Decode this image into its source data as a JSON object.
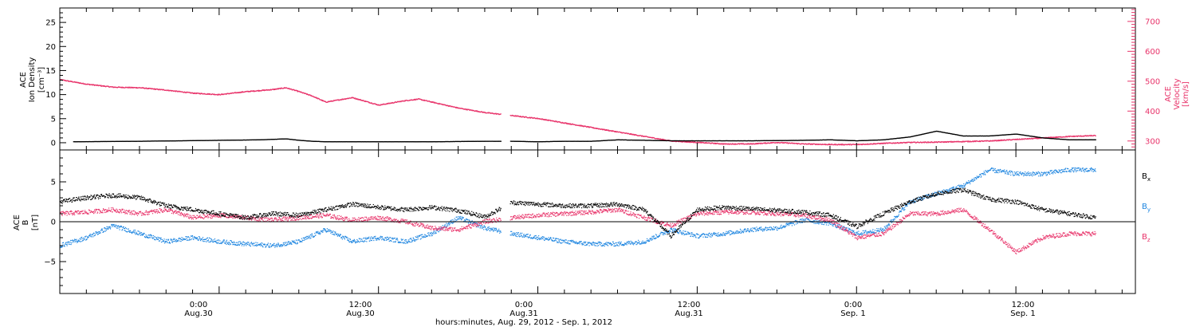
{
  "colors": {
    "black": "#000000",
    "pink": "#e8336a",
    "blue": "#1f86e0"
  },
  "chart_data": [
    {
      "type": "scatter",
      "panel": "plasma",
      "xlim_hours": [
        -12,
        69
      ],
      "left_axis": {
        "label_lines": [
          "ACE",
          "Ion Density",
          "[cm⁻³]"
        ],
        "ylim": [
          -1.5,
          28
        ],
        "ticks": [
          0,
          5,
          10,
          15,
          20,
          25
        ]
      },
      "right_axis": {
        "label_lines": [
          "ACE",
          "Velocity",
          "[km/s]"
        ],
        "ylim": [
          270,
          745
        ],
        "ticks": [
          300,
          400,
          500,
          600,
          700
        ],
        "color": "#e8336a"
      },
      "series": [
        {
          "name": "Ion Density",
          "axis": "left",
          "color": "#000000",
          "x": [
            -11,
            -6,
            -3,
            0,
            3,
            5,
            6,
            7,
            8,
            10,
            12,
            16,
            20,
            22,
            24,
            26,
            28,
            30,
            32,
            34,
            36,
            40,
            44,
            46,
            48,
            50,
            51,
            52,
            54,
            56,
            58,
            60,
            62,
            64,
            66
          ],
          "y": [
            0.2,
            0.3,
            0.4,
            0.5,
            0.6,
            0.8,
            0.5,
            0.3,
            0.2,
            0.2,
            0.2,
            0.2,
            0.3,
            0.3,
            0.2,
            0.3,
            0.3,
            0.6,
            0.5,
            0.4,
            0.4,
            0.4,
            0.5,
            0.6,
            0.4,
            0.6,
            0.9,
            1.2,
            2.4,
            1.4,
            1.4,
            1.8,
            1.0,
            0.6,
            0.6
          ]
        },
        {
          "name": "Velocity",
          "axis": "right",
          "color": "#e8336a",
          "x": [
            -12,
            -10,
            -8,
            -6,
            -4,
            -2,
            0,
            2,
            4,
            5,
            6,
            7,
            8,
            10,
            12,
            14,
            15,
            16,
            18,
            20,
            22,
            24,
            26,
            28,
            30,
            32,
            34,
            36,
            38,
            40,
            42,
            44,
            46,
            48,
            50,
            52,
            54,
            56,
            58,
            60,
            62,
            64,
            66
          ],
          "y": [
            505,
            490,
            480,
            478,
            470,
            460,
            455,
            465,
            472,
            478,
            465,
            450,
            430,
            445,
            420,
            435,
            440,
            430,
            410,
            395,
            385,
            375,
            360,
            345,
            330,
            315,
            300,
            295,
            290,
            290,
            295,
            290,
            288,
            288,
            292,
            295,
            296,
            298,
            300,
            305,
            310,
            315,
            318
          ]
        }
      ]
    },
    {
      "type": "scatter",
      "panel": "magnetic",
      "xlim_hours": [
        -12,
        69
      ],
      "left_axis": {
        "label_lines": [
          "ACE",
          "B",
          "[nT]"
        ],
        "ylim": [
          -9,
          9
        ],
        "ticks": [
          -5,
          0,
          5
        ]
      },
      "zero_line": true,
      "series": [
        {
          "name": "Bx",
          "name_main": "B",
          "name_sub": "x",
          "color": "#000000",
          "x": [
            -12,
            -10,
            -8,
            -6,
            -4,
            -2,
            0,
            2,
            4,
            6,
            8,
            10,
            12,
            14,
            16,
            18,
            20,
            22,
            24,
            26,
            28,
            30,
            32,
            34,
            36,
            38,
            40,
            42,
            44,
            46,
            48,
            50,
            52,
            54,
            56,
            58,
            60,
            62,
            64,
            66
          ],
          "y": [
            2.5,
            3.0,
            3.3,
            3.0,
            2.0,
            1.5,
            1.0,
            0.5,
            1.0,
            0.8,
            1.5,
            2.2,
            1.8,
            1.5,
            1.8,
            1.4,
            0.6,
            2.4,
            2.2,
            2.0,
            2.0,
            2.2,
            1.5,
            -1.8,
            1.5,
            1.8,
            1.6,
            1.4,
            1.2,
            0.8,
            -0.6,
            1.0,
            2.5,
            3.5,
            4.0,
            2.8,
            2.5,
            1.5,
            1.0,
            0.5
          ]
        },
        {
          "name": "By",
          "name_main": "B",
          "name_sub": "y",
          "color": "#1f86e0",
          "x": [
            -12,
            -10,
            -8,
            -6,
            -4,
            -2,
            0,
            2,
            4,
            6,
            8,
            10,
            12,
            14,
            16,
            18,
            20,
            22,
            24,
            26,
            28,
            30,
            32,
            34,
            36,
            38,
            40,
            42,
            44,
            46,
            48,
            50,
            52,
            54,
            56,
            58,
            60,
            62,
            64,
            66
          ],
          "y": [
            -3.0,
            -2.0,
            -0.5,
            -1.5,
            -2.5,
            -2.0,
            -2.5,
            -2.8,
            -3.0,
            -2.5,
            -1.0,
            -2.5,
            -2.0,
            -2.5,
            -1.5,
            0.5,
            -0.8,
            -1.5,
            -2.0,
            -2.5,
            -2.8,
            -2.8,
            -2.5,
            -1.0,
            -1.8,
            -1.5,
            -1.0,
            -0.8,
            0.2,
            -0.2,
            -1.5,
            -1.0,
            2.5,
            3.5,
            4.5,
            6.5,
            6.0,
            6.0,
            6.5,
            6.5
          ]
        },
        {
          "name": "Bz",
          "name_main": "B",
          "name_sub": "z",
          "color": "#e8336a",
          "x": [
            -12,
            -10,
            -8,
            -6,
            -4,
            -2,
            0,
            2,
            4,
            6,
            8,
            10,
            12,
            14,
            16,
            18,
            20,
            22,
            24,
            26,
            28,
            30,
            32,
            34,
            36,
            38,
            40,
            42,
            44,
            46,
            48,
            50,
            52,
            54,
            56,
            58,
            60,
            62,
            64,
            66
          ],
          "y": [
            1.0,
            1.2,
            1.5,
            1.0,
            1.5,
            0.5,
            0.8,
            0.5,
            0.2,
            0.5,
            0.8,
            0.2,
            0.5,
            0.0,
            -0.8,
            -1.0,
            0.0,
            0.5,
            0.8,
            1.0,
            1.2,
            1.5,
            0.5,
            -0.5,
            1.0,
            1.2,
            1.2,
            1.0,
            0.8,
            0.2,
            -2.0,
            -1.5,
            1.0,
            1.0,
            1.5,
            -1.0,
            -3.8,
            -2.0,
            -1.5,
            -1.5
          ]
        }
      ]
    }
  ],
  "xaxis": {
    "major_ticks_hours": [
      0,
      12,
      24,
      36,
      48,
      60
    ],
    "major_labels": [
      {
        "time": "0:00",
        "date": "Aug.30"
      },
      {
        "time": "12:00",
        "date": "Aug.30"
      },
      {
        "time": "0:00",
        "date": "Aug.31"
      },
      {
        "time": "12:00",
        "date": "Aug.31"
      },
      {
        "time": "0:00",
        "date": "Sep. 1"
      },
      {
        "time": "12:00",
        "date": "Sep. 1"
      }
    ],
    "minor_step_hours": 2,
    "title": "hours:minutes, Aug. 29, 2012 - Sep.  1, 2012"
  }
}
